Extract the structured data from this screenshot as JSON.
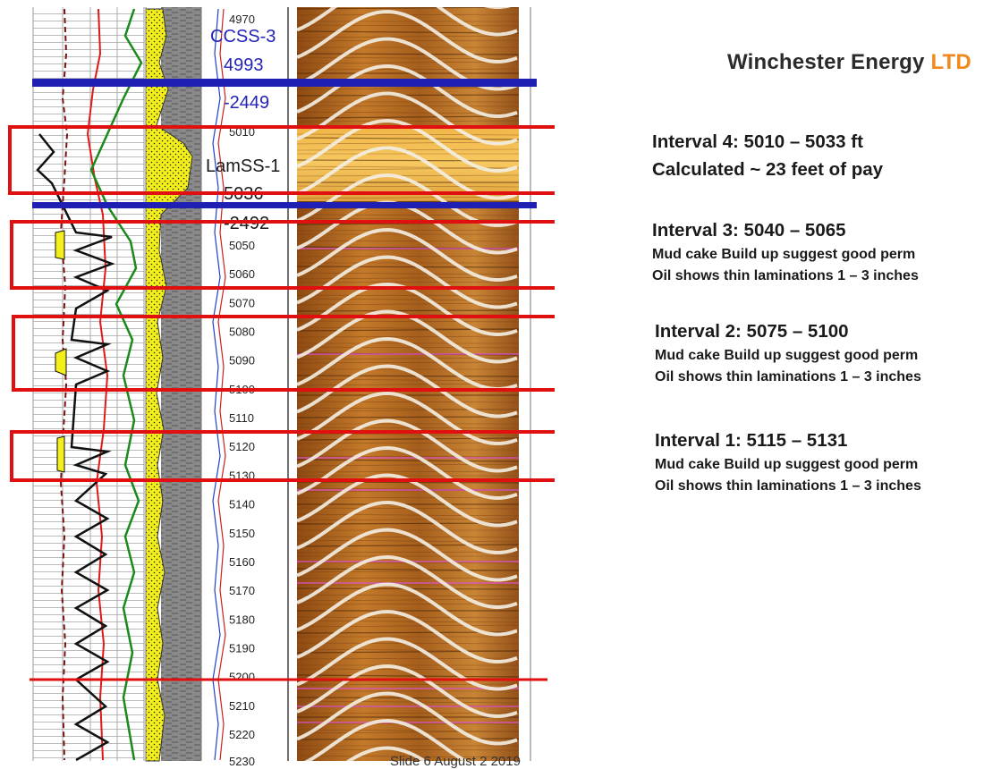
{
  "logo": {
    "name": "Winchester Energy",
    "suffix": "LTD",
    "name_color": "#2b2b2b",
    "suffix_color": "#f08a1c"
  },
  "markers": {
    "ccss3_label": "CCSS-3",
    "ccss3_md": "4993",
    "ccss3_tvd": "-2449",
    "lamss1_label": "LamSS-1",
    "lamss1_md": "5036",
    "lamss1_tvd": "-2492",
    "marker_color": "#1f1fb4"
  },
  "depth_labels": [
    "4970",
    "5010",
    "5050",
    "5060",
    "5070",
    "5080",
    "5090",
    "5100",
    "5110",
    "5120",
    "5130",
    "5140",
    "5150",
    "5160",
    "5170",
    "5180",
    "5190",
    "5200",
    "5210",
    "5220",
    "5230"
  ],
  "intervals": [
    {
      "title": "Interval 4: 5010 – 5033 ft",
      "line1": "Calculated ~ 23 feet of pay"
    },
    {
      "title": "Interval 3:  5040 – 5065",
      "line1": "Mud cake Build up  suggest  good perm",
      "line2": "Oil shows thin laminations 1 – 3 inches"
    },
    {
      "title": "Interval 2:  5075 – 5100",
      "line1": "Mud cake Build up  suggest  good perm",
      "line2": "Oil shows thin laminations 1 – 3 inches"
    },
    {
      "title": "Interval 1:  5115 – 5131",
      "line1": "Mud cake Build up  suggest  good perm",
      "line2": "Oil shows thin laminations 1 – 3 inches"
    }
  ],
  "footer": "Slide 6 August 2 2019",
  "colors": {
    "highlight_box": "#e01010",
    "image_log": "#b7661e",
    "gamma_fill": "#f2ef1a",
    "marker": "#1f1fb4"
  }
}
